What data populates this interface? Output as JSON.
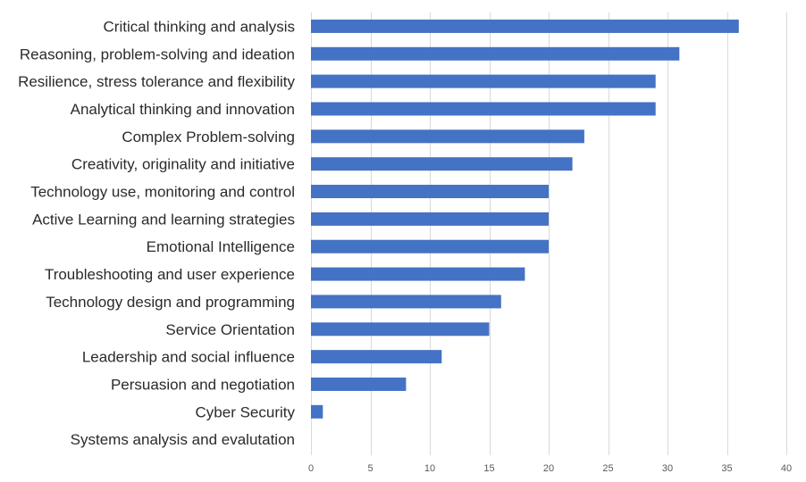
{
  "chart_data": {
    "type": "bar",
    "orientation": "horizontal",
    "title": "",
    "xlabel": "",
    "ylabel": "",
    "categories": [
      "Critical thinking and analysis",
      "Reasoning, problem-solving and ideation",
      "Resilience, stress tolerance and flexibility",
      "Analytical thinking and innovation",
      "Complex Problem-solving",
      "Creativity, originality and initiative",
      "Technology use, monitoring and control",
      "Active Learning and learning strategies",
      "Emotional Intelligence",
      "Troubleshooting and user experience",
      "Technology design and programming",
      "Service Orientation",
      "Leadership and social influence",
      "Persuasion and negotiation",
      "Cyber Security",
      "Systems analysis and evalutation"
    ],
    "values": [
      36,
      31,
      29,
      29,
      23,
      22,
      20,
      20,
      20,
      18,
      16,
      15,
      11,
      8,
      1,
      0
    ],
    "xlim": [
      0,
      40
    ],
    "xticks": [
      0,
      5,
      10,
      15,
      20,
      25,
      30,
      35,
      40
    ],
    "grid": true,
    "bar_color": "#4472c4"
  }
}
